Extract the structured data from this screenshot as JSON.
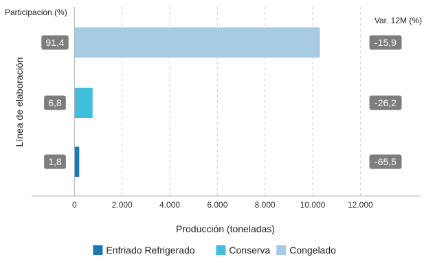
{
  "chart_data": {
    "type": "bar",
    "orientation": "horizontal",
    "categories": [
      "Congelado",
      "Conserva",
      "Enfriado Refrigerado"
    ],
    "values": [
      10300,
      760,
      200
    ],
    "colors": [
      "#a6cbe3",
      "#40bfdb",
      "#1f78b4"
    ],
    "xlabel": "Producción (toneladas)",
    "ylabel": "Línea de elaboración",
    "xlim": [
      -1800,
      14500
    ],
    "xticks": [
      0,
      2000,
      4000,
      6000,
      8000,
      10000,
      12000
    ],
    "xtick_labels": [
      "0",
      "2.000",
      "4.000",
      "6.000",
      "8.000",
      "10.000",
      "12.000"
    ],
    "grid_x": true,
    "left_header": "Participación (%)",
    "right_header": "Var. 12M (%)",
    "participation_labels": [
      "91,4",
      "6,8",
      "1,8"
    ],
    "variation_labels": [
      "-15,9",
      "-26,2",
      "-65,5"
    ],
    "legend": {
      "position": "bottom",
      "items": [
        {
          "label": "Enfriado Refrigerado",
          "color": "#1f78b4"
        },
        {
          "label": "Conserva",
          "color": "#40bfdb"
        },
        {
          "label": "Congelado",
          "color": "#a6cbe3"
        }
      ]
    }
  }
}
